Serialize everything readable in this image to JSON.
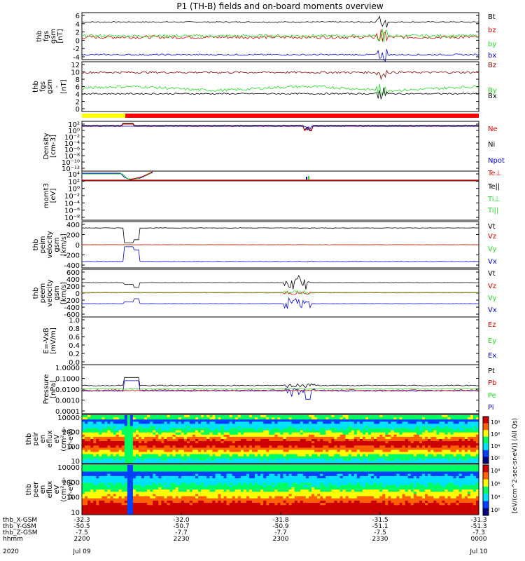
{
  "title": "P1 (TH-B) fields and on-board moments overview",
  "colors": {
    "black": "#000000",
    "red": "#dd0000",
    "green": "#22dd22",
    "blue": "#0000dd",
    "darkred": "#880000",
    "yellow": "#ffff00",
    "bar_red": "#ff0000"
  },
  "chart_data": [
    {
      "type": "line",
      "ylabel_lines": [
        "thb",
        "fgs",
        "gsm",
        "[nT]"
      ],
      "y_ticks": [
        "6",
        "4",
        "2",
        "0",
        "-2",
        "-4"
      ],
      "ylim": [
        -5,
        6.5
      ],
      "series": [
        {
          "name": "Bt",
          "color": "black",
          "level": 4.2,
          "noise": 0.15
        },
        {
          "name": "bz",
          "color": "red",
          "level": 0.5,
          "noise": 0.4
        },
        {
          "name": "by",
          "color": "green",
          "level": 0.8,
          "noise": 0.35
        },
        {
          "name": "bx",
          "color": "blue",
          "level": -3.8,
          "noise": 0.2
        }
      ]
    },
    {
      "type": "line",
      "ylabel_lines": [
        "thb",
        "fgs",
        "gsm",
        "-",
        "[nT]"
      ],
      "y_ticks": [
        "12",
        "10",
        "8",
        "6",
        "4",
        "2",
        "0"
      ],
      "ylim": [
        -1,
        13
      ],
      "series": [
        {
          "name": "Bz",
          "color": "darkred",
          "level": 10,
          "noise": 0.3
        },
        {
          "name": "By",
          "color": "green",
          "level": 5.5,
          "noise": 0.4
        },
        {
          "name": "Bx",
          "color": "black",
          "level": 4,
          "noise": 0.2
        }
      ]
    },
    {
      "type": "log-line",
      "ylabel_lines": [
        "Density",
        "[cm-3]"
      ],
      "y_ticks": [
        "10²",
        "10⁰",
        "10⁻²",
        "10⁻⁴",
        "10⁻⁶",
        "10⁻⁸",
        "10⁻¹⁰",
        "10⁻¹²"
      ],
      "series": [
        {
          "name": "Ne",
          "color": "red"
        },
        {
          "name": "Ni",
          "color": "black"
        },
        {
          "name": "Npot",
          "color": "blue"
        }
      ]
    },
    {
      "type": "log-line",
      "ylabel_lines": [
        "momt3",
        "[eV]"
      ],
      "y_ticks": [
        "10⁴",
        "10²",
        "10⁰",
        "10⁻²",
        "10⁻⁴",
        "10⁻⁶",
        "10⁻⁸"
      ],
      "series": [
        {
          "name": "Te⊥",
          "color": "red"
        },
        {
          "name": "Te||",
          "color": "black"
        },
        {
          "name": "Ti⊥",
          "color": "green"
        },
        {
          "name": "Ti||",
          "color": "green"
        }
      ]
    },
    {
      "type": "line",
      "ylabel_lines": [
        "thb",
        "peim",
        "velocity",
        "gsm",
        "[km/s]"
      ],
      "y_ticks": [
        "400",
        "200",
        "0",
        "-200",
        "-400"
      ],
      "series": [
        {
          "name": "Vt",
          "color": "black"
        },
        {
          "name": "Vz",
          "color": "red"
        },
        {
          "name": "Vy",
          "color": "green"
        },
        {
          "name": "Vx",
          "color": "blue"
        }
      ]
    },
    {
      "type": "line",
      "ylabel_lines": [
        "thb",
        "peem",
        "velocity",
        "gsm",
        "[km/s]"
      ],
      "y_ticks": [
        "600",
        "400",
        "200",
        "0",
        "-200",
        "-400",
        "-600"
      ],
      "series": [
        {
          "name": "Vt",
          "color": "black"
        },
        {
          "name": "Vz",
          "color": "red"
        },
        {
          "name": "Vy",
          "color": "green"
        },
        {
          "name": "Vx",
          "color": "blue"
        }
      ]
    },
    {
      "type": "line",
      "ylabel_lines": [
        "E=-VxB",
        "[mV/m]"
      ],
      "y_ticks": [
        "1.0",
        "0.8",
        "0.6",
        "0.4",
        "0.2",
        "0.0"
      ],
      "series": [
        {
          "name": "Ez",
          "color": "red"
        },
        {
          "name": "Ey",
          "color": "green"
        },
        {
          "name": "Ex",
          "color": "blue"
        }
      ]
    },
    {
      "type": "log-line",
      "ylabel_lines": [
        "Pressure",
        "[nPa]"
      ],
      "y_ticks": [
        "1.0000",
        "0.1000",
        "0.0100",
        "0.0010",
        "0.0001"
      ],
      "series": [
        {
          "name": "Pt",
          "color": "black"
        },
        {
          "name": "Pb",
          "color": "red"
        },
        {
          "name": "Pe",
          "color": "green"
        },
        {
          "name": "Pi",
          "color": "blue"
        }
      ]
    },
    {
      "type": "heatmap",
      "ylabel_lines": [
        "thb",
        "peir",
        "en",
        "eflux",
        "eV",
        "(cm²-s-",
        "sr-eV)"
      ],
      "y_ticks": [
        "10000",
        "1000",
        "100",
        "10"
      ]
    },
    {
      "type": "heatmap",
      "ylabel_lines": [
        "thb",
        "peer",
        "en",
        "eflux",
        "eV",
        "(cm²-s-",
        "sr-eV)"
      ],
      "y_ticks": [
        "10000",
        "1000",
        "100",
        "10"
      ]
    }
  ],
  "colorbar": {
    "label": "[eV/(cm^2-sec-sr-eV)] (All Qs)",
    "upper_ticks": [
      "10⁸",
      "10⁶",
      "10⁴",
      "10²"
    ],
    "lower_ticks": [
      "10⁸",
      "10⁶",
      "10⁴",
      "10²"
    ]
  },
  "xaxis": {
    "rows": [
      {
        "label": "thb_X-GSM",
        "values": [
          "-32.3",
          "-32.0",
          "-31.8",
          "-31.5",
          "-31.3"
        ]
      },
      {
        "label": "thb_Y-GSM",
        "values": [
          "-50.5",
          "-50.7",
          "-50.9",
          "-51.1",
          "-51.3"
        ]
      },
      {
        "label": "thb_Z-GSM",
        "values": [
          "-7.5",
          "-7.7",
          "-7.7",
          "-7.5",
          "-7.3"
        ]
      },
      {
        "label": "hhmm",
        "values": [
          "2200",
          "2230",
          "2300",
          "2330",
          "0000"
        ]
      }
    ],
    "year": "2020",
    "date_start": "Jul 09",
    "date_end": "Jul 10"
  }
}
